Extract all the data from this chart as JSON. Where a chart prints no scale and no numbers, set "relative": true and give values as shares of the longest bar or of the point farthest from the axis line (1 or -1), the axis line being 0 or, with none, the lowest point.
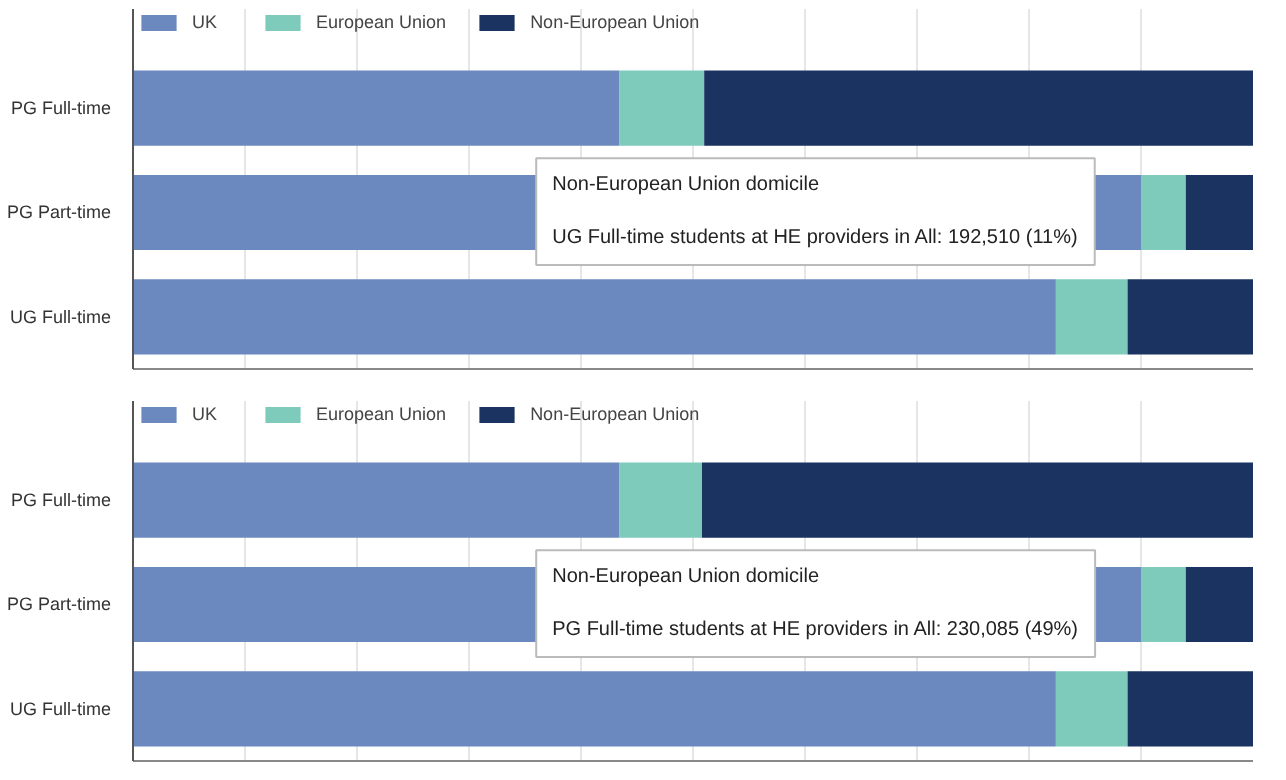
{
  "chart_data": [
    {
      "type": "bar",
      "orientation": "horizontal",
      "stacked": true,
      "relative": true,
      "categories": [
        "PG Full-time",
        "PG Part-time",
        "UG Full-time"
      ],
      "legend": "top left",
      "grid": "x",
      "series": [
        {
          "name": "UK",
          "color": "#6b88bf",
          "values": [
            0.434,
            0.9,
            0.824
          ]
        },
        {
          "name": "European Union",
          "color": "#7fcbbb",
          "values": [
            0.076,
            0.04,
            0.064
          ]
        },
        {
          "name": "Non-European Union",
          "color": "#1b3360",
          "values": [
            0.49,
            0.06,
            0.112
          ]
        }
      ],
      "annotations": [
        "Non-European Union domicile\n\nUG Full-time students at HE providers in All: 192,510 (11%)"
      ]
    },
    {
      "type": "bar",
      "orientation": "horizontal",
      "stacked": true,
      "relative": true,
      "categories": [
        "PG Full-time",
        "PG Part-time",
        "UG Full-time"
      ],
      "legend": "top left",
      "grid": "x",
      "series": [
        {
          "name": "UK",
          "color": "#6b88bf",
          "values": [
            0.434,
            0.9,
            0.824
          ]
        },
        {
          "name": "European Union",
          "color": "#7fcbbb",
          "values": [
            0.074,
            0.04,
            0.064
          ]
        },
        {
          "name": "Non-European Union",
          "color": "#1b3360",
          "values": [
            0.492,
            0.06,
            0.112
          ]
        }
      ],
      "annotations": [
        "Non-European Union domicile\n\nPG Full-time students at HE providers in All: 230,085 (49%)"
      ]
    }
  ]
}
